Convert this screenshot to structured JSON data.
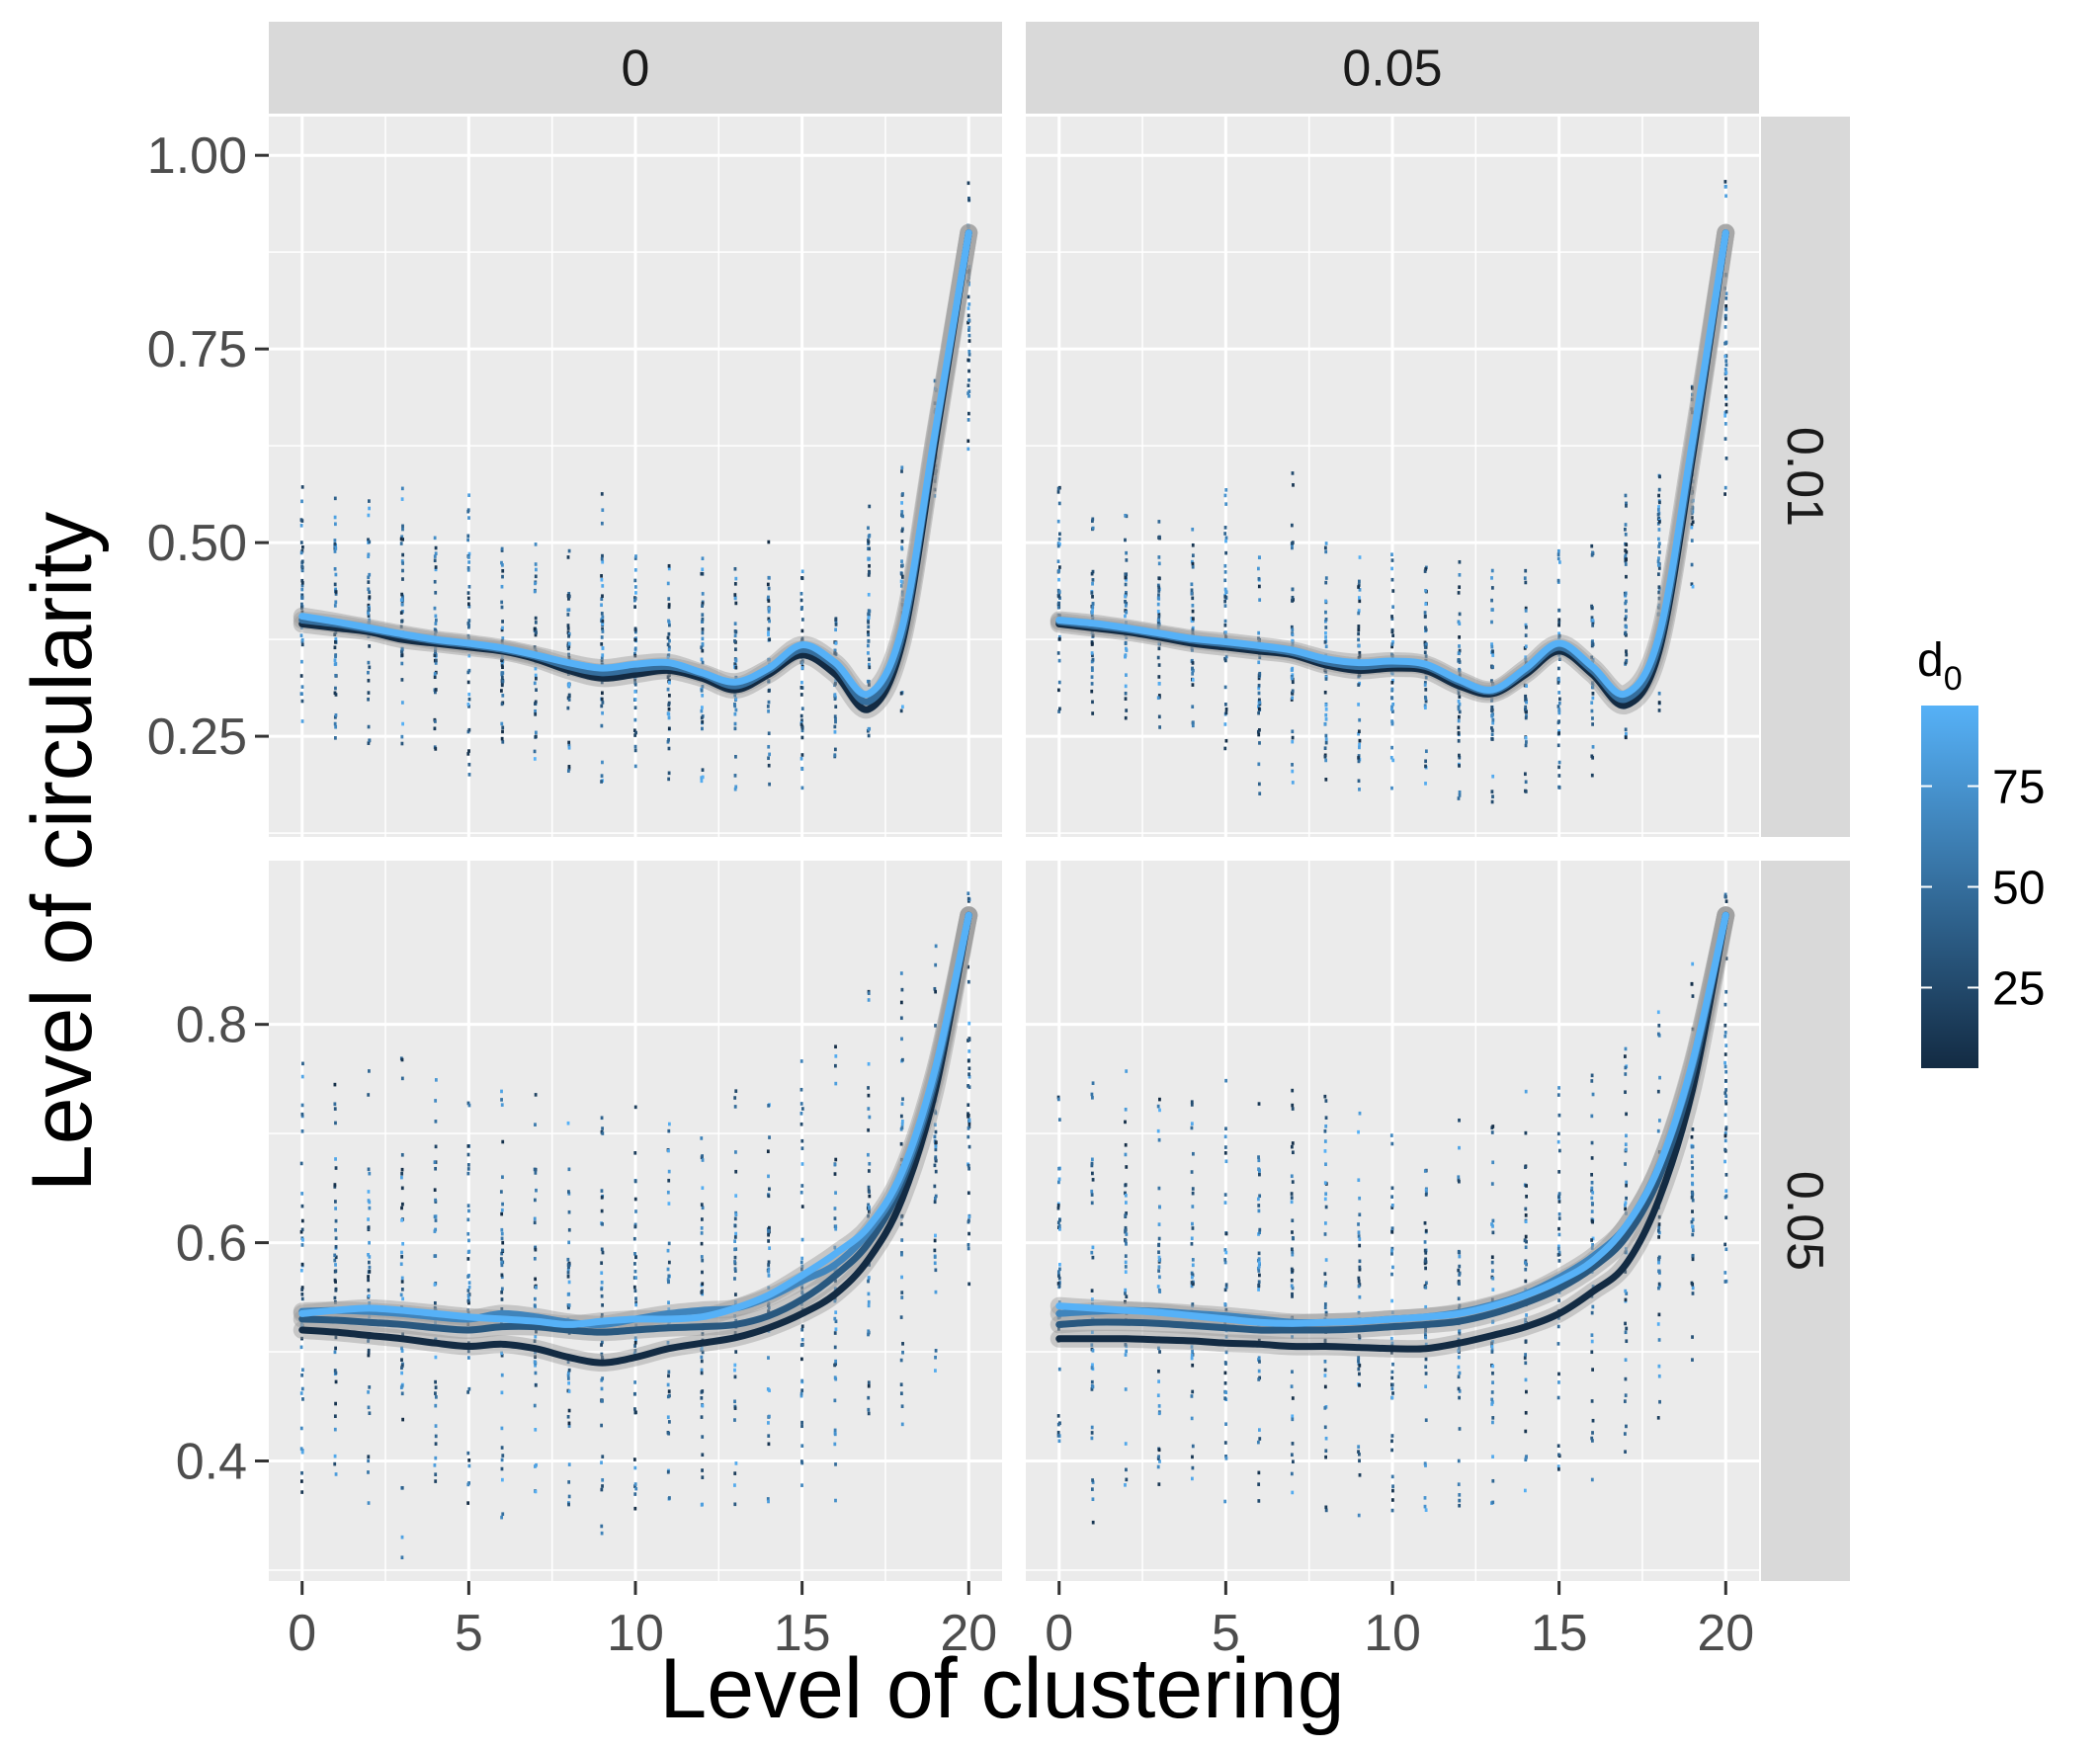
{
  "chart_data": {
    "type": "scatter",
    "layout": "facet grid (2 rows x 2 columns) with jittered points and per-d0 smoothed lines",
    "xlabel": "Level of clustering",
    "ylabel": "Level of circularity",
    "col_facets": [
      "0",
      "0.05"
    ],
    "row_facets": [
      "0.01",
      "0.05"
    ],
    "x_ticks": [
      0,
      5,
      10,
      15,
      20
    ],
    "xlim": [
      -1,
      21
    ],
    "rows": [
      {
        "label": "0.01",
        "ylim": [
          0.12,
          1.05
        ],
        "y_ticks": [
          0.25,
          0.5,
          0.75,
          1.0
        ],
        "y_tick_labels": [
          "0.25",
          "0.50",
          "0.75",
          "1.00"
        ]
      },
      {
        "label": "0.05",
        "ylim": [
          0.29,
          0.95
        ],
        "y_ticks": [
          0.4,
          0.6,
          0.8
        ],
        "y_tick_labels": [
          "0.4",
          "0.6",
          "0.8"
        ]
      }
    ],
    "color_legend": {
      "title": "d",
      "subscript": "0",
      "ticks": [
        25,
        50,
        75
      ],
      "range": [
        5,
        95
      ],
      "low_color": "#132B43",
      "high_color": "#56B1F7"
    },
    "panels": [
      {
        "col": "0",
        "row": "0.01",
        "x": [
          0,
          1,
          2,
          3,
          4,
          5,
          6,
          7,
          8,
          9,
          10,
          11,
          12,
          13,
          14,
          15,
          16,
          17,
          18,
          19,
          20
        ],
        "series": [
          {
            "d0": 5,
            "y": [
              0.395,
              0.39,
              0.385,
              0.375,
              0.37,
              0.365,
              0.36,
              0.35,
              0.335,
              0.325,
              0.33,
              0.335,
              0.325,
              0.31,
              0.33,
              0.355,
              0.33,
              0.285,
              0.37,
              0.63,
              0.9
            ]
          },
          {
            "d0": 50,
            "y": [
              0.4,
              0.395,
              0.388,
              0.38,
              0.373,
              0.368,
              0.362,
              0.353,
              0.34,
              0.332,
              0.337,
              0.34,
              0.33,
              0.315,
              0.335,
              0.362,
              0.34,
              0.295,
              0.38,
              0.64,
              0.9
            ]
          },
          {
            "d0": 95,
            "y": [
              0.405,
              0.398,
              0.39,
              0.382,
              0.375,
              0.37,
              0.364,
              0.355,
              0.345,
              0.338,
              0.343,
              0.345,
              0.332,
              0.32,
              0.338,
              0.368,
              0.345,
              0.305,
              0.39,
              0.645,
              0.9
            ]
          }
        ],
        "point_range": [
          [
            0.26,
            0.59
          ],
          [
            0.24,
            0.56
          ],
          [
            0.24,
            0.56
          ],
          [
            0.24,
            0.58
          ],
          [
            0.23,
            0.51
          ],
          [
            0.2,
            0.59
          ],
          [
            0.23,
            0.5
          ],
          [
            0.21,
            0.5
          ],
          [
            0.19,
            0.49
          ],
          [
            0.19,
            0.57
          ],
          [
            0.21,
            0.49
          ],
          [
            0.19,
            0.47
          ],
          [
            0.19,
            0.48
          ],
          [
            0.18,
            0.47
          ],
          [
            0.18,
            0.52
          ],
          [
            0.17,
            0.47
          ],
          [
            0.22,
            0.43
          ],
          [
            0.25,
            0.56
          ],
          [
            0.28,
            0.63
          ],
          [
            0.55,
            0.71
          ],
          [
            0.62,
            0.97
          ]
        ]
      },
      {
        "col": "0.05",
        "row": "0.01",
        "x": [
          0,
          1,
          2,
          3,
          4,
          5,
          6,
          7,
          8,
          9,
          10,
          11,
          12,
          13,
          14,
          15,
          16,
          17,
          18,
          19,
          20
        ],
        "series": [
          {
            "d0": 5,
            "y": [
              0.395,
              0.39,
              0.385,
              0.378,
              0.37,
              0.365,
              0.36,
              0.355,
              0.342,
              0.335,
              0.338,
              0.335,
              0.315,
              0.305,
              0.33,
              0.36,
              0.33,
              0.29,
              0.36,
              0.61,
              0.9
            ]
          },
          {
            "d0": 50,
            "y": [
              0.398,
              0.393,
              0.388,
              0.381,
              0.374,
              0.369,
              0.364,
              0.358,
              0.346,
              0.34,
              0.343,
              0.34,
              0.32,
              0.308,
              0.334,
              0.365,
              0.335,
              0.298,
              0.37,
              0.62,
              0.9
            ]
          },
          {
            "d0": 95,
            "y": [
              0.4,
              0.396,
              0.39,
              0.383,
              0.376,
              0.372,
              0.367,
              0.361,
              0.35,
              0.345,
              0.347,
              0.343,
              0.323,
              0.31,
              0.338,
              0.37,
              0.34,
              0.305,
              0.38,
              0.63,
              0.9
            ]
          }
        ],
        "point_range": [
          [
            0.27,
            0.59
          ],
          [
            0.27,
            0.55
          ],
          [
            0.27,
            0.54
          ],
          [
            0.26,
            0.53
          ],
          [
            0.24,
            0.52
          ],
          [
            0.23,
            0.59
          ],
          [
            0.17,
            0.5
          ],
          [
            0.18,
            0.59
          ],
          [
            0.18,
            0.5
          ],
          [
            0.18,
            0.5
          ],
          [
            0.17,
            0.5
          ],
          [
            0.18,
            0.5
          ],
          [
            0.16,
            0.5
          ],
          [
            0.16,
            0.47
          ],
          [
            0.17,
            0.47
          ],
          [
            0.18,
            0.49
          ],
          [
            0.19,
            0.5
          ],
          [
            0.24,
            0.57
          ],
          [
            0.28,
            0.64
          ],
          [
            0.44,
            0.72
          ],
          [
            0.54,
            0.97
          ]
        ]
      },
      {
        "col": "0",
        "row": "0.05",
        "x": [
          0,
          1,
          2,
          3,
          4,
          5,
          6,
          7,
          8,
          9,
          10,
          11,
          12,
          13,
          14,
          15,
          16,
          17,
          18,
          19,
          20
        ],
        "series": [
          {
            "d0": 5,
            "y": [
              0.52,
              0.518,
              0.515,
              0.512,
              0.508,
              0.505,
              0.507,
              0.503,
              0.495,
              0.49,
              0.495,
              0.503,
              0.508,
              0.513,
              0.522,
              0.535,
              0.553,
              0.585,
              0.64,
              0.74,
              0.9
            ]
          },
          {
            "d0": 35,
            "y": [
              0.53,
              0.529,
              0.527,
              0.525,
              0.522,
              0.52,
              0.523,
              0.523,
              0.52,
              0.518,
              0.52,
              0.522,
              0.523,
              0.525,
              0.533,
              0.548,
              0.57,
              0.6,
              0.655,
              0.75,
              0.9
            ]
          },
          {
            "d0": 65,
            "y": [
              0.537,
              0.538,
              0.537,
              0.535,
              0.532,
              0.53,
              0.535,
              0.532,
              0.527,
              0.525,
              0.53,
              0.535,
              0.538,
              0.54,
              0.55,
              0.565,
              0.58,
              0.61,
              0.66,
              0.755,
              0.9
            ]
          },
          {
            "d0": 95,
            "y": [
              0.535,
              0.538,
              0.54,
              0.538,
              0.535,
              0.532,
              0.53,
              0.528,
              0.525,
              0.528,
              0.53,
              0.53,
              0.532,
              0.54,
              0.552,
              0.57,
              0.59,
              0.615,
              0.665,
              0.76,
              0.9
            ]
          }
        ],
        "point_range": [
          [
            0.36,
            0.77
          ],
          [
            0.37,
            0.77
          ],
          [
            0.36,
            0.76
          ],
          [
            0.31,
            0.77
          ],
          [
            0.36,
            0.76
          ],
          [
            0.35,
            0.76
          ],
          [
            0.34,
            0.74
          ],
          [
            0.34,
            0.74
          ],
          [
            0.33,
            0.72
          ],
          [
            0.33,
            0.74
          ],
          [
            0.33,
            0.73
          ],
          [
            0.34,
            0.73
          ],
          [
            0.34,
            0.72
          ],
          [
            0.36,
            0.74
          ],
          [
            0.36,
            0.75
          ],
          [
            0.37,
            0.78
          ],
          [
            0.36,
            0.79
          ],
          [
            0.41,
            0.83
          ],
          [
            0.42,
            0.85
          ],
          [
            0.47,
            0.88
          ],
          [
            0.55,
            0.92
          ]
        ]
      },
      {
        "col": "0.05",
        "row": "0.05",
        "x": [
          0,
          1,
          2,
          3,
          4,
          5,
          6,
          7,
          8,
          9,
          10,
          11,
          12,
          13,
          14,
          15,
          16,
          17,
          18,
          19,
          20
        ],
        "series": [
          {
            "d0": 5,
            "y": [
              0.512,
              0.512,
              0.512,
              0.511,
              0.51,
              0.508,
              0.507,
              0.505,
              0.505,
              0.504,
              0.503,
              0.503,
              0.508,
              0.515,
              0.523,
              0.535,
              0.555,
              0.58,
              0.64,
              0.74,
              0.9
            ]
          },
          {
            "d0": 35,
            "y": [
              0.525,
              0.527,
              0.527,
              0.526,
              0.524,
              0.522,
              0.52,
              0.52,
              0.52,
              0.521,
              0.523,
              0.525,
              0.528,
              0.535,
              0.545,
              0.558,
              0.577,
              0.605,
              0.66,
              0.755,
              0.9
            ]
          },
          {
            "d0": 65,
            "y": [
              0.535,
              0.537,
              0.538,
              0.537,
              0.535,
              0.533,
              0.53,
              0.527,
              0.527,
              0.528,
              0.53,
              0.532,
              0.536,
              0.543,
              0.553,
              0.568,
              0.587,
              0.615,
              0.67,
              0.762,
              0.9
            ]
          },
          {
            "d0": 95,
            "y": [
              0.542,
              0.54,
              0.538,
              0.536,
              0.533,
              0.53,
              0.527,
              0.526,
              0.527,
              0.528,
              0.53,
              0.532,
              0.535,
              0.542,
              0.552,
              0.565,
              0.583,
              0.615,
              0.67,
              0.765,
              0.9
            ]
          }
        ],
        "point_range": [
          [
            0.37,
            0.77
          ],
          [
            0.31,
            0.76
          ],
          [
            0.37,
            0.76
          ],
          [
            0.36,
            0.74
          ],
          [
            0.36,
            0.75
          ],
          [
            0.36,
            0.75
          ],
          [
            0.36,
            0.75
          ],
          [
            0.36,
            0.75
          ],
          [
            0.35,
            0.74
          ],
          [
            0.35,
            0.73
          ],
          [
            0.35,
            0.73
          ],
          [
            0.35,
            0.73
          ],
          [
            0.35,
            0.73
          ],
          [
            0.35,
            0.73
          ],
          [
            0.36,
            0.75
          ],
          [
            0.37,
            0.76
          ],
          [
            0.38,
            0.77
          ],
          [
            0.4,
            0.83
          ],
          [
            0.43,
            0.85
          ],
          [
            0.46,
            0.88
          ],
          [
            0.55,
            0.92
          ]
        ]
      }
    ]
  }
}
